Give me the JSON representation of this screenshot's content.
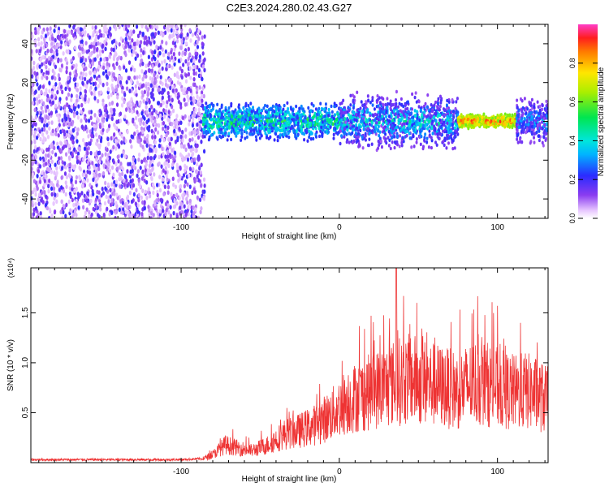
{
  "title": "C2E3.2024.280.02.43.G27",
  "chart_data": [
    {
      "type": "heatmap",
      "title": "C2E3.2024.280.02.43.G27",
      "xlabel": "Height of straight line (km)",
      "ylabel": "Frequency (Hz)",
      "xlim": [
        -195,
        132
      ],
      "ylim": [
        -50,
        50
      ],
      "x_ticks": [
        -100,
        0,
        100
      ],
      "y_ticks": [
        -40,
        -20,
        0,
        20,
        40
      ],
      "colorbar": {
        "label": "Normalized spectral amplitude",
        "range": [
          0,
          1
        ],
        "ticks": [
          "0.0",
          "0.2",
          "0.4",
          "0.6",
          "0.8"
        ],
        "colormap": "rainbow (white-violet-blue-cyan-green-yellow-red)"
      },
      "description_regions": [
        {
          "x_range": [
            -195,
            -86
          ],
          "frequency_range": [
            -50,
            50
          ],
          "amplitude": "low, broadband speckle"
        },
        {
          "x_range": [
            -86,
            0
          ],
          "frequency_center": 0,
          "half_width_hz": 8,
          "amplitude": "0.2–0.6"
        },
        {
          "x_range": [
            0,
            75
          ],
          "frequency_center": 0,
          "half_width_hz": 12,
          "amplitude": "0.1–0.5"
        },
        {
          "x_range": [
            75,
            112
          ],
          "frequency_center": 0,
          "half_width_hz": 3,
          "amplitude": "0.6–0.95"
        },
        {
          "x_range": [
            112,
            132
          ],
          "frequency_center": 0,
          "half_width_hz": 10,
          "amplitude": "0.1–0.4"
        }
      ]
    },
    {
      "type": "line",
      "xlabel": "Height of straight line (km)",
      "ylabel": "SNR (10 * v/v)",
      "y_multiplier": "(x10⁴)",
      "xlim": [
        -195,
        132
      ],
      "ylim": [
        0,
        1.95
      ],
      "x_ticks": [
        -100,
        0,
        100
      ],
      "y_ticks": [
        "0.5",
        "1.0",
        "1.5"
      ],
      "series_color": "#ee3333",
      "x": [
        -195,
        -150,
        -100,
        -86,
        -80,
        -72,
        -65,
        -55,
        -45,
        -35,
        -25,
        -15,
        -5,
        5,
        15,
        25,
        35,
        45,
        55,
        65,
        75,
        85,
        95,
        105,
        112,
        118,
        125,
        132
      ],
      "y": [
        0.03,
        0.03,
        0.03,
        0.04,
        0.08,
        0.18,
        0.15,
        0.12,
        0.18,
        0.28,
        0.32,
        0.38,
        0.48,
        0.62,
        0.68,
        0.74,
        0.8,
        0.84,
        0.8,
        0.76,
        0.72,
        0.8,
        0.78,
        0.72,
        0.7,
        0.72,
        0.68,
        0.62
      ],
      "peak_y": 1.95,
      "peak_x": 36
    }
  ]
}
